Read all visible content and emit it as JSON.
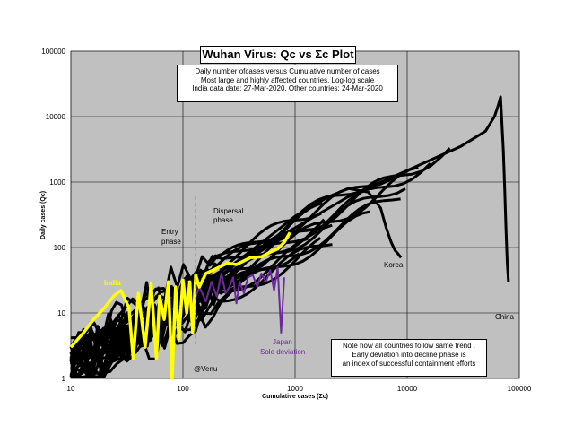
{
  "chart_data": {
    "type": "line",
    "title": "Wuhan Virus: Qc vs Σc Plot",
    "subtitle_lines": [
      "Daily number ofcases versus Cumulative number of cases",
      "Most large and highly affected countries. Log-log scale",
      "India data date: 27-Mar-2020. Other countries: 24-Mar-2020"
    ],
    "xlabel": "Cumulative cases (Σc)",
    "ylabel": "Daily cases (Qc)",
    "x_scale": "log",
    "y_scale": "log",
    "xlim": [
      10,
      100000
    ],
    "ylim": [
      1,
      100000
    ],
    "x_ticks": [
      "10",
      "100",
      "1000",
      "10000",
      "100000"
    ],
    "y_ticks": [
      "1",
      "10",
      "100",
      "1000",
      "10000",
      "100000"
    ],
    "grid": true,
    "colors": {
      "plot_bg": "#c0c0c0",
      "others": "#000000",
      "india": "#ffff00",
      "japan": "#6a2a9a",
      "phase_line": "#cc33cc"
    },
    "annotations": {
      "entry": [
        "Entry",
        "phase"
      ],
      "dispersal": [
        "Dispersal",
        "phase"
      ],
      "india": "India",
      "japan": [
        "Japan",
        "Sole deviation"
      ],
      "korea": "Korea",
      "china": "China",
      "venu": "@Venu"
    },
    "note_lines": [
      "Note how all countries follow same trend .",
      "Early deviation into decline phase is",
      "an index of successful containment efforts"
    ],
    "phase_boundary_x": 130,
    "series": [
      {
        "name": "India",
        "color": "#ffff00",
        "x": [
          10,
          13,
          16,
          20,
          24,
          28,
          33,
          36,
          40,
          46,
          52,
          58,
          62,
          68,
          74,
          80,
          86,
          92,
          100,
          108,
          115,
          122,
          130,
          140,
          160,
          200,
          250,
          300,
          400,
          500,
          600,
          700,
          800,
          900
        ],
        "y": [
          3,
          5,
          8,
          12,
          18,
          22,
          12,
          2,
          20,
          3,
          28,
          2,
          18,
          8,
          30,
          1,
          25,
          4,
          32,
          10,
          30,
          5,
          38,
          25,
          40,
          48,
          58,
          55,
          70,
          72,
          85,
          95,
          120,
          170
        ]
      },
      {
        "name": "Japan",
        "color": "#6a2a9a",
        "x": [
          120,
          140,
          160,
          180,
          200,
          220,
          240,
          260,
          280,
          300,
          320,
          350,
          380,
          420,
          460,
          500,
          550,
          600,
          650,
          700,
          750,
          800
        ],
        "y": [
          12,
          25,
          15,
          30,
          18,
          40,
          20,
          25,
          35,
          14,
          30,
          20,
          35,
          38,
          25,
          40,
          30,
          45,
          22,
          50,
          5,
          35
        ]
      },
      {
        "name": "Korea",
        "color": "#000000",
        "x": [
          20,
          40,
          80,
          150,
          300,
          600,
          1000,
          2000,
          3000,
          4500,
          5800,
          6500,
          7200,
          7800,
          8300,
          8800
        ],
        "y": [
          2,
          4,
          8,
          20,
          60,
          150,
          300,
          600,
          800,
          700,
          400,
          200,
          120,
          90,
          80,
          70
        ]
      },
      {
        "name": "China",
        "color": "#000000",
        "x": [
          15,
          50,
          100,
          300,
          1000,
          3000,
          10000,
          30000,
          50000,
          60000,
          65000,
          68000,
          70000,
          72000,
          74000,
          76000,
          78000,
          80000
        ],
        "y": [
          2,
          8,
          20,
          60,
          200,
          600,
          1500,
          3500,
          6000,
          10000,
          15000,
          20000,
          8000,
          3000,
          800,
          200,
          60,
          30
        ]
      }
    ]
  }
}
